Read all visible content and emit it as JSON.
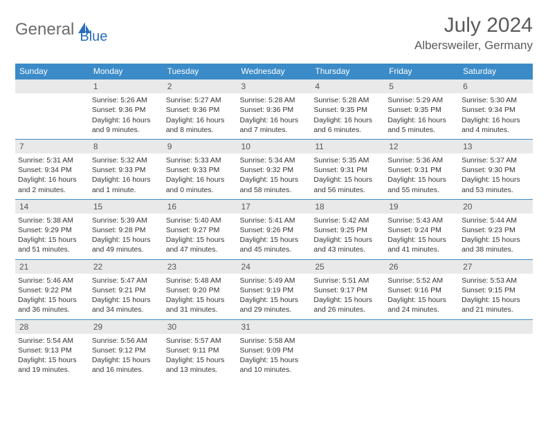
{
  "colors": {
    "header_bg": "#3b8bc8",
    "header_text": "#ffffff",
    "daynum_bg": "#e9e9e9",
    "daynum_text": "#555555",
    "body_text": "#333333",
    "title_text": "#5a5a5a",
    "logo_gray": "#6b6b6b",
    "logo_blue": "#2a6ebb",
    "row_border": "#3b8bc8",
    "background": "#ffffff"
  },
  "logo": {
    "part1": "General",
    "part2": "Blue"
  },
  "title": "July 2024",
  "location": "Albersweiler, Germany",
  "weekdays": [
    "Sunday",
    "Monday",
    "Tuesday",
    "Wednesday",
    "Thursday",
    "Friday",
    "Saturday"
  ],
  "weeks": [
    [
      null,
      {
        "n": "1",
        "l1": "Sunrise: 5:26 AM",
        "l2": "Sunset: 9:36 PM",
        "l3": "Daylight: 16 hours and 9 minutes."
      },
      {
        "n": "2",
        "l1": "Sunrise: 5:27 AM",
        "l2": "Sunset: 9:36 PM",
        "l3": "Daylight: 16 hours and 8 minutes."
      },
      {
        "n": "3",
        "l1": "Sunrise: 5:28 AM",
        "l2": "Sunset: 9:36 PM",
        "l3": "Daylight: 16 hours and 7 minutes."
      },
      {
        "n": "4",
        "l1": "Sunrise: 5:28 AM",
        "l2": "Sunset: 9:35 PM",
        "l3": "Daylight: 16 hours and 6 minutes."
      },
      {
        "n": "5",
        "l1": "Sunrise: 5:29 AM",
        "l2": "Sunset: 9:35 PM",
        "l3": "Daylight: 16 hours and 5 minutes."
      },
      {
        "n": "6",
        "l1": "Sunrise: 5:30 AM",
        "l2": "Sunset: 9:34 PM",
        "l3": "Daylight: 16 hours and 4 minutes."
      }
    ],
    [
      {
        "n": "7",
        "l1": "Sunrise: 5:31 AM",
        "l2": "Sunset: 9:34 PM",
        "l3": "Daylight: 16 hours and 2 minutes."
      },
      {
        "n": "8",
        "l1": "Sunrise: 5:32 AM",
        "l2": "Sunset: 9:33 PM",
        "l3": "Daylight: 16 hours and 1 minute."
      },
      {
        "n": "9",
        "l1": "Sunrise: 5:33 AM",
        "l2": "Sunset: 9:33 PM",
        "l3": "Daylight: 16 hours and 0 minutes."
      },
      {
        "n": "10",
        "l1": "Sunrise: 5:34 AM",
        "l2": "Sunset: 9:32 PM",
        "l3": "Daylight: 15 hours and 58 minutes."
      },
      {
        "n": "11",
        "l1": "Sunrise: 5:35 AM",
        "l2": "Sunset: 9:31 PM",
        "l3": "Daylight: 15 hours and 56 minutes."
      },
      {
        "n": "12",
        "l1": "Sunrise: 5:36 AM",
        "l2": "Sunset: 9:31 PM",
        "l3": "Daylight: 15 hours and 55 minutes."
      },
      {
        "n": "13",
        "l1": "Sunrise: 5:37 AM",
        "l2": "Sunset: 9:30 PM",
        "l3": "Daylight: 15 hours and 53 minutes."
      }
    ],
    [
      {
        "n": "14",
        "l1": "Sunrise: 5:38 AM",
        "l2": "Sunset: 9:29 PM",
        "l3": "Daylight: 15 hours and 51 minutes."
      },
      {
        "n": "15",
        "l1": "Sunrise: 5:39 AM",
        "l2": "Sunset: 9:28 PM",
        "l3": "Daylight: 15 hours and 49 minutes."
      },
      {
        "n": "16",
        "l1": "Sunrise: 5:40 AM",
        "l2": "Sunset: 9:27 PM",
        "l3": "Daylight: 15 hours and 47 minutes."
      },
      {
        "n": "17",
        "l1": "Sunrise: 5:41 AM",
        "l2": "Sunset: 9:26 PM",
        "l3": "Daylight: 15 hours and 45 minutes."
      },
      {
        "n": "18",
        "l1": "Sunrise: 5:42 AM",
        "l2": "Sunset: 9:25 PM",
        "l3": "Daylight: 15 hours and 43 minutes."
      },
      {
        "n": "19",
        "l1": "Sunrise: 5:43 AM",
        "l2": "Sunset: 9:24 PM",
        "l3": "Daylight: 15 hours and 41 minutes."
      },
      {
        "n": "20",
        "l1": "Sunrise: 5:44 AM",
        "l2": "Sunset: 9:23 PM",
        "l3": "Daylight: 15 hours and 38 minutes."
      }
    ],
    [
      {
        "n": "21",
        "l1": "Sunrise: 5:46 AM",
        "l2": "Sunset: 9:22 PM",
        "l3": "Daylight: 15 hours and 36 minutes."
      },
      {
        "n": "22",
        "l1": "Sunrise: 5:47 AM",
        "l2": "Sunset: 9:21 PM",
        "l3": "Daylight: 15 hours and 34 minutes."
      },
      {
        "n": "23",
        "l1": "Sunrise: 5:48 AM",
        "l2": "Sunset: 9:20 PM",
        "l3": "Daylight: 15 hours and 31 minutes."
      },
      {
        "n": "24",
        "l1": "Sunrise: 5:49 AM",
        "l2": "Sunset: 9:19 PM",
        "l3": "Daylight: 15 hours and 29 minutes."
      },
      {
        "n": "25",
        "l1": "Sunrise: 5:51 AM",
        "l2": "Sunset: 9:17 PM",
        "l3": "Daylight: 15 hours and 26 minutes."
      },
      {
        "n": "26",
        "l1": "Sunrise: 5:52 AM",
        "l2": "Sunset: 9:16 PM",
        "l3": "Daylight: 15 hours and 24 minutes."
      },
      {
        "n": "27",
        "l1": "Sunrise: 5:53 AM",
        "l2": "Sunset: 9:15 PM",
        "l3": "Daylight: 15 hours and 21 minutes."
      }
    ],
    [
      {
        "n": "28",
        "l1": "Sunrise: 5:54 AM",
        "l2": "Sunset: 9:13 PM",
        "l3": "Daylight: 15 hours and 19 minutes."
      },
      {
        "n": "29",
        "l1": "Sunrise: 5:56 AM",
        "l2": "Sunset: 9:12 PM",
        "l3": "Daylight: 15 hours and 16 minutes."
      },
      {
        "n": "30",
        "l1": "Sunrise: 5:57 AM",
        "l2": "Sunset: 9:11 PM",
        "l3": "Daylight: 15 hours and 13 minutes."
      },
      {
        "n": "31",
        "l1": "Sunrise: 5:58 AM",
        "l2": "Sunset: 9:09 PM",
        "l3": "Daylight: 15 hours and 10 minutes."
      },
      null,
      null,
      null
    ]
  ]
}
